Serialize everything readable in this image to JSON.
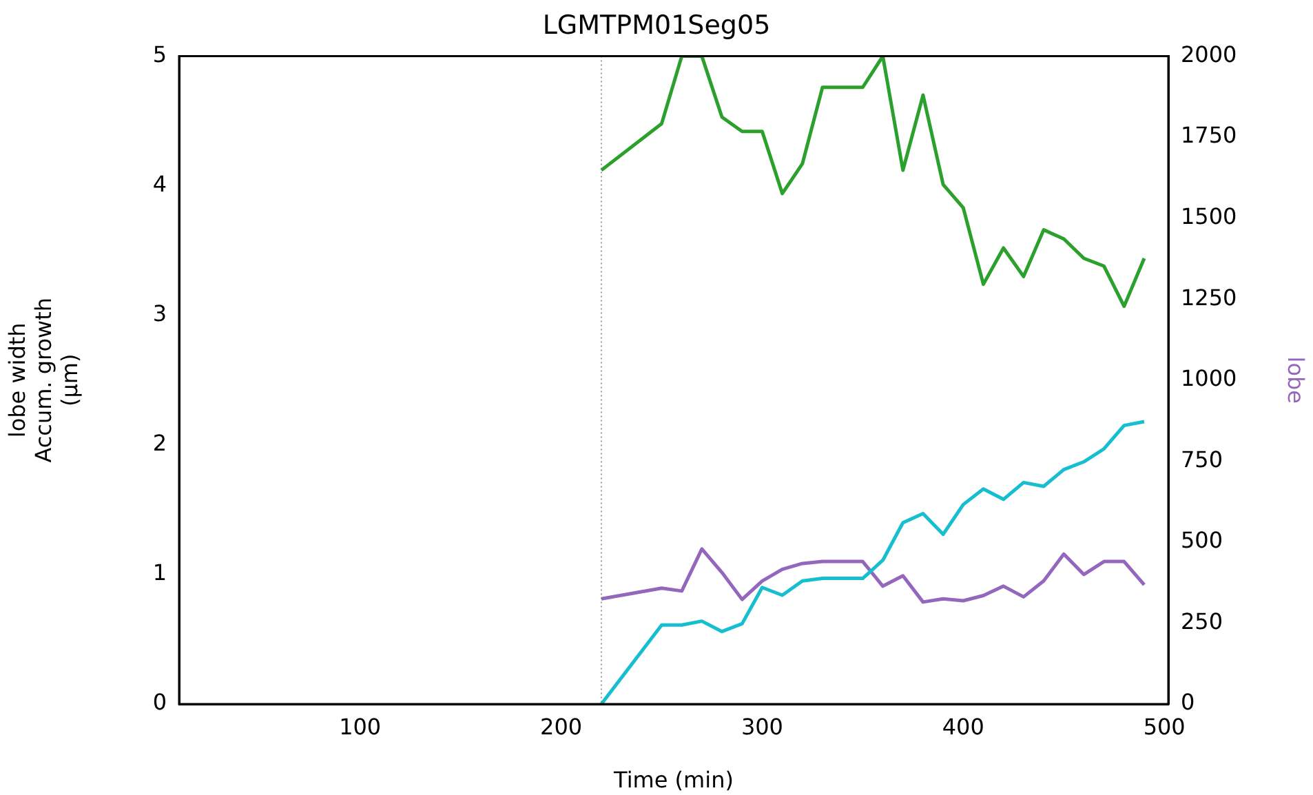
{
  "chart_data": {
    "type": "line",
    "title": "LGMTPM01Seg05",
    "xlabel": "Time (min)",
    "ylabel": "lobe width\nAccum. growth\n(µm)",
    "y2label": "lobe",
    "x": [
      220,
      250,
      260,
      270,
      280,
      290,
      300,
      310,
      320,
      330,
      340,
      350,
      360,
      370,
      380,
      390,
      400,
      410,
      420,
      430,
      440,
      450,
      460,
      470,
      480,
      490
    ],
    "series": [
      {
        "color": "#2ca02c",
        "values": [
          4.12,
          4.48,
          5.0,
          5.0,
          4.53,
          4.42,
          4.42,
          3.94,
          4.17,
          4.76,
          4.76,
          4.76,
          5.0,
          4.12,
          4.7,
          4.01,
          3.83,
          3.24,
          3.52,
          3.3,
          3.66,
          3.59,
          3.44,
          3.38,
          3.07,
          3.44
        ]
      },
      {
        "color": "#17becf",
        "values": [
          0,
          0.61,
          0.61,
          0.64,
          0.56,
          0.62,
          0.9,
          0.84,
          0.95,
          0.97,
          0.97,
          0.97,
          1.11,
          1.4,
          1.47,
          1.31,
          1.54,
          1.66,
          1.58,
          1.71,
          1.68,
          1.81,
          1.87,
          1.97,
          2.15,
          2.18
        ]
      },
      {
        "color": "#9467bd",
        "axis": "y2",
        "values": [
          325,
          358,
          349,
          479,
          406,
          323,
          380,
          416,
          434,
          440,
          440,
          440,
          364,
          396,
          315,
          325,
          319,
          335,
          364,
          331,
          380,
          463,
          400,
          440,
          440,
          368
        ]
      }
    ],
    "xlim": [
      10,
      502
    ],
    "xticks": [
      100,
      200,
      300,
      400,
      500
    ],
    "ylim": [
      0,
      5
    ],
    "yticks": [
      0,
      1,
      2,
      3,
      4,
      5
    ],
    "y2lim": [
      0,
      2000
    ],
    "y2ticks": [
      0,
      250,
      500,
      750,
      1000,
      1250,
      1500,
      1750,
      2000
    ],
    "ref_lines": [
      {
        "axis": "x",
        "value": 220,
        "color": "#808080",
        "line_style": "dotted"
      }
    ],
    "grid": false,
    "legend": false,
    "marker": "none",
    "line_style": "solid"
  }
}
